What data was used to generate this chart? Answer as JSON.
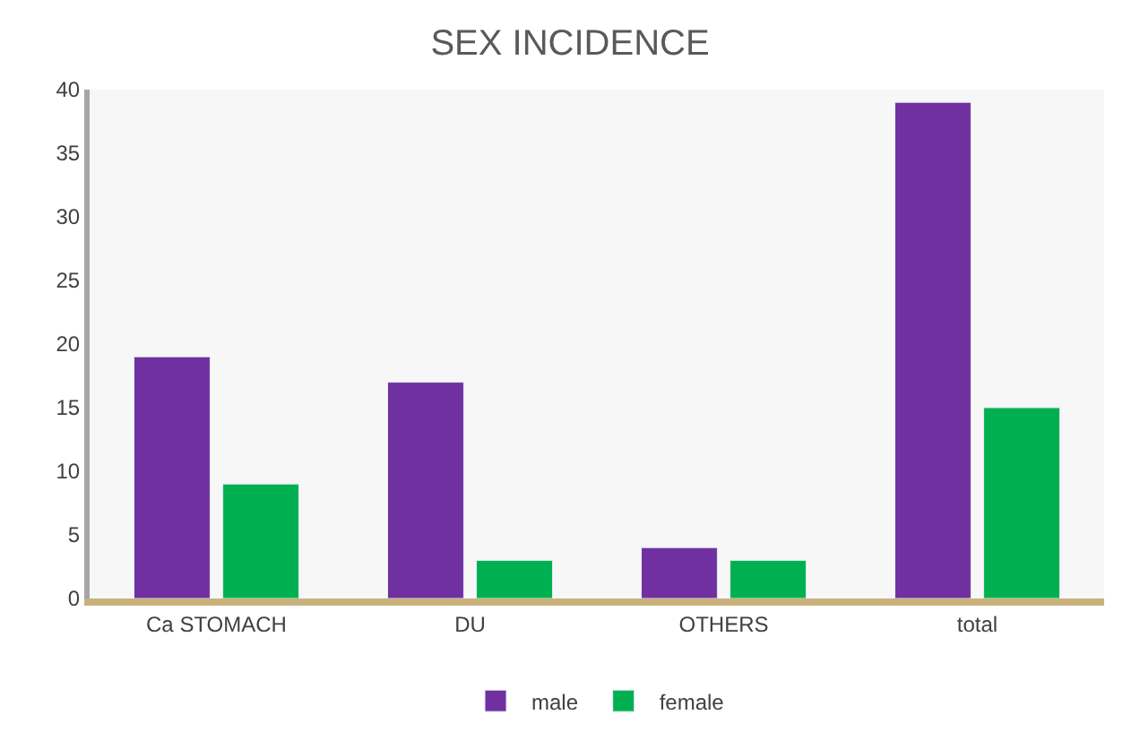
{
  "chart_data": {
    "type": "bar",
    "title": "SEX INCIDENCE",
    "categories": [
      "Ca STOMACH",
      "DU",
      "OTHERS",
      "total"
    ],
    "series": [
      {
        "name": "male",
        "color": "#7030a0",
        "values": [
          19,
          17,
          4,
          39
        ]
      },
      {
        "name": "female",
        "color": "#00b050",
        "values": [
          9,
          3,
          3,
          15
        ]
      }
    ],
    "ylim": [
      0,
      40
    ],
    "yticks": [
      0,
      5,
      10,
      15,
      20,
      25,
      30,
      35,
      40
    ],
    "grid": false,
    "legend": "bottom"
  }
}
